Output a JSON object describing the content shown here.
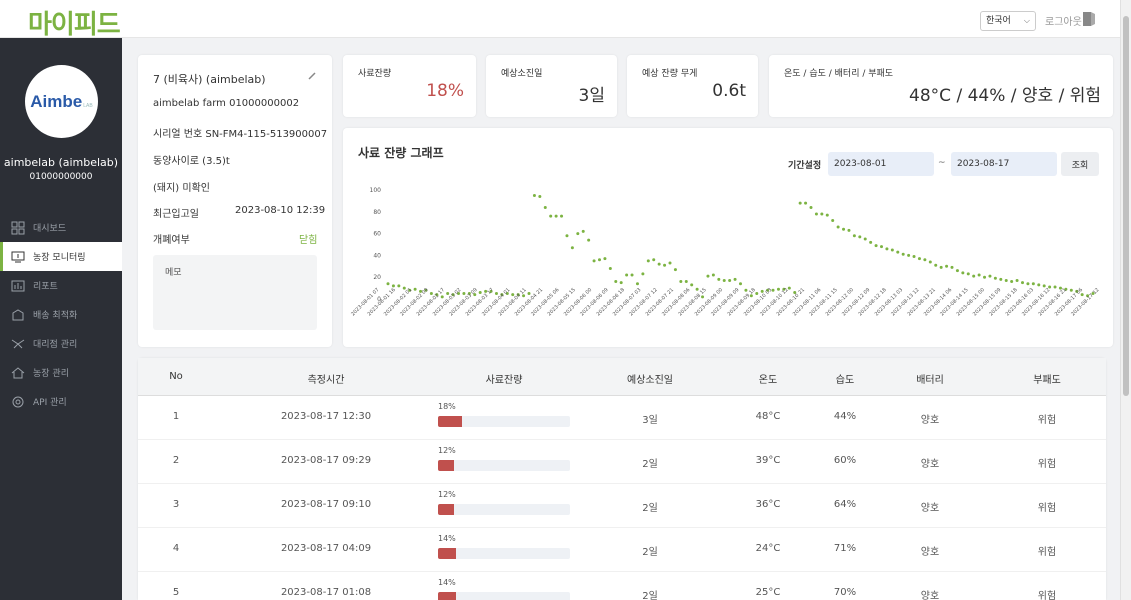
{
  "header": {
    "logo": "마이피드",
    "language": "한국어",
    "logout": "로그아웃"
  },
  "sidebar": {
    "avatar_brand": "Aimbe",
    "avatar_sub": "LAB",
    "user_name": "aimbelab (aimbelab)",
    "user_id": "01000000000",
    "items": [
      {
        "label": "대시보드",
        "icon": "dashboard-icon",
        "active": false
      },
      {
        "label": "농장 모니터링",
        "icon": "monitor-icon",
        "active": true
      },
      {
        "label": "리포트",
        "icon": "report-icon",
        "active": false
      },
      {
        "label": "배송 최적화",
        "icon": "delivery-icon",
        "active": false
      },
      {
        "label": "대리점 관리",
        "icon": "agency-icon",
        "active": false
      },
      {
        "label": "농장 관리",
        "icon": "home-icon",
        "active": false
      },
      {
        "label": "API 관리",
        "icon": "api-icon",
        "active": false
      }
    ]
  },
  "info": {
    "title": "7 (비육사) (aimbelab)",
    "farm": "aimbelab farm   01000000002",
    "serial": "시리얼 번호  SN-FM4-115-513900007",
    "silo": "동양사이로 (3.5)t",
    "pig": "(돼지) 미확인",
    "last_in_label": "최근입고일",
    "last_in_value": "2023-08-10 12:39",
    "open_label": "개폐여부",
    "open_value": "닫힘",
    "memo_label": "메모"
  },
  "stats": {
    "feed_remain": {
      "title": "사료잔량",
      "value": "18%",
      "color": "#c0504d"
    },
    "days_left": {
      "title": "예상소진일",
      "value": "3일"
    },
    "weight_left": {
      "title": "예상 잔량 무게",
      "value": "0.6t"
    },
    "env": {
      "title": "온도 / 습도 / 배터리 / 부패도",
      "value": "48°C / 44% / 양호 / 위험"
    }
  },
  "chart": {
    "title": "사료 잔량 그래프",
    "period_label": "기간설정",
    "start_date": "2023-08-01",
    "tilde": "~",
    "end_date": "2023-08-17",
    "query_button": "조회"
  },
  "chart_data": {
    "type": "scatter",
    "title": "사료 잔량 그래프",
    "ylim": [
      0,
      100
    ],
    "yticks": [
      0,
      20,
      40,
      60,
      80,
      100
    ],
    "point_color": "#7cb342",
    "x_ticks": [
      "2023-08-01 07",
      "2023-08-01 16",
      "2023-08-02 01",
      "2023-08-02 09",
      "2023-08-02 17",
      "2023-08-03 02",
      "2023-08-03 09",
      "2023-08-03 17",
      "2023-08-04 01",
      "2023-08-04 11",
      "2023-08-04 21",
      "2023-08-05 06",
      "2023-08-05 15",
      "2023-08-06 00",
      "2023-08-06 09",
      "2023-08-06 18",
      "2023-08-07 03",
      "2023-08-07 12",
      "2023-08-07 21",
      "2023-08-08 06",
      "2023-08-08 15",
      "2023-08-09 00",
      "2023-08-09 09",
      "2023-08-09 18",
      "2023-08-10 03",
      "2023-08-10 12",
      "2023-08-10 21",
      "2023-08-11 06",
      "2023-08-11 15",
      "2023-08-12 00",
      "2023-08-12 09",
      "2023-08-12 18",
      "2023-08-13 03",
      "2023-08-13 12",
      "2023-08-13 21",
      "2023-08-14 06",
      "2023-08-14 15",
      "2023-08-15 00",
      "2023-08-15 09",
      "2023-08-15 18",
      "2023-08-16 03",
      "2023-08-16 12",
      "2023-08-16 21",
      "2023-08-17 06",
      "2023-08-17 12"
    ],
    "values": [
      14,
      12,
      12,
      10,
      8,
      9,
      7,
      8,
      5,
      4,
      2,
      5,
      4,
      5,
      5,
      5,
      4,
      6,
      7,
      7,
      5,
      4,
      5,
      4,
      4,
      3,
      5,
      95,
      94,
      84,
      76,
      76,
      76,
      58,
      47,
      60,
      62,
      54,
      35,
      36,
      37,
      28,
      16,
      15,
      22,
      22,
      14,
      23,
      35,
      36,
      32,
      31,
      33,
      27,
      16,
      16,
      13,
      9,
      2,
      21,
      22,
      18,
      17,
      17,
      18,
      14,
      8,
      3,
      5,
      7,
      8,
      8,
      9,
      9,
      10,
      6,
      88,
      88,
      84,
      78,
      78,
      77,
      72,
      66,
      64,
      63,
      58,
      57,
      55,
      52,
      49,
      48,
      46,
      45,
      43,
      41,
      40,
      39,
      37,
      36,
      34,
      31,
      29,
      30,
      29,
      26,
      24,
      23,
      21,
      22,
      20,
      21,
      19,
      18,
      17,
      16,
      17,
      15,
      14,
      14,
      13,
      12,
      11,
      11,
      10,
      9,
      8,
      7,
      4,
      3,
      5
    ],
    "y_tick_labels": [
      "0",
      "20",
      "40",
      "60",
      "80",
      "100"
    ]
  },
  "table": {
    "headers": [
      "No",
      "측정시간",
      "사료잔량",
      "예상소진일",
      "온도",
      "습도",
      "배터리",
      "부패도"
    ],
    "rows": [
      {
        "no": "1",
        "time": "2023-08-17 12:30",
        "feed": "18%",
        "feed_level": 0.18,
        "days": "3일",
        "temp": "48°C",
        "hum": "44%",
        "battery": "양호",
        "decay": "위험"
      },
      {
        "no": "2",
        "time": "2023-08-17 09:29",
        "feed": "12%",
        "feed_level": 0.12,
        "days": "2일",
        "temp": "39°C",
        "hum": "60%",
        "battery": "양호",
        "decay": "위험"
      },
      {
        "no": "3",
        "time": "2023-08-17 09:10",
        "feed": "12%",
        "feed_level": 0.12,
        "days": "2일",
        "temp": "36°C",
        "hum": "64%",
        "battery": "양호",
        "decay": "위험"
      },
      {
        "no": "4",
        "time": "2023-08-17 04:09",
        "feed": "14%",
        "feed_level": 0.14,
        "days": "2일",
        "temp": "24°C",
        "hum": "71%",
        "battery": "양호",
        "decay": "위험"
      },
      {
        "no": "5",
        "time": "2023-08-17 01:08",
        "feed": "14%",
        "feed_level": 0.14,
        "days": "2일",
        "temp": "25°C",
        "hum": "70%",
        "battery": "양호",
        "decay": "위험"
      }
    ]
  }
}
